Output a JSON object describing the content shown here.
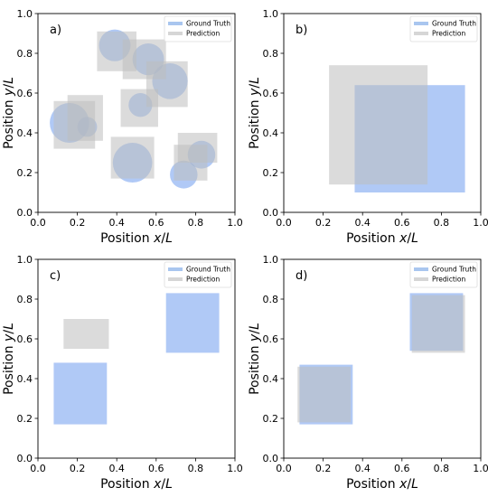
{
  "colors": {
    "ground_truth": "#6f9cef",
    "prediction": "#bdbdbd",
    "legend_ground_truth": "#a9c6ef",
    "legend_prediction": "#d6d6d6"
  },
  "chart_data": [
    {
      "type": "scatter",
      "panel_label": "a)",
      "xlabel": "Position x/L",
      "ylabel": "Position y/L",
      "xlim": [
        0,
        1
      ],
      "ylim": [
        0,
        1
      ],
      "xticks": [
        "0.0",
        "0.2",
        "0.4",
        "0.6",
        "0.8",
        "1.0"
      ],
      "yticks": [
        "0.0",
        "0.2",
        "0.4",
        "0.6",
        "0.8",
        "1.0"
      ],
      "legend": {
        "placement": "top-right",
        "ground_truth": "Ground Truth",
        "prediction": "Prediction"
      },
      "ground_truth_circles": [
        {
          "cx": 0.39,
          "cy": 0.84,
          "r": 0.08
        },
        {
          "cx": 0.56,
          "cy": 0.77,
          "r": 0.08
        },
        {
          "cx": 0.67,
          "cy": 0.66,
          "r": 0.09
        },
        {
          "cx": 0.16,
          "cy": 0.45,
          "r": 0.1
        },
        {
          "cx": 0.25,
          "cy": 0.43,
          "r": 0.05
        },
        {
          "cx": 0.52,
          "cy": 0.54,
          "r": 0.06
        },
        {
          "cx": 0.48,
          "cy": 0.25,
          "r": 0.1
        },
        {
          "cx": 0.83,
          "cy": 0.29,
          "r": 0.07
        },
        {
          "cx": 0.74,
          "cy": 0.19,
          "r": 0.07
        }
      ],
      "prediction_boxes": [
        {
          "x0": 0.3,
          "x1": 0.5,
          "y0": 0.71,
          "y1": 0.91
        },
        {
          "x0": 0.43,
          "x1": 0.65,
          "y0": 0.67,
          "y1": 0.87
        },
        {
          "x0": 0.55,
          "x1": 0.76,
          "y0": 0.53,
          "y1": 0.76
        },
        {
          "x0": 0.08,
          "x1": 0.29,
          "y0": 0.32,
          "y1": 0.56
        },
        {
          "x0": 0.15,
          "x1": 0.33,
          "y0": 0.36,
          "y1": 0.59
        },
        {
          "x0": 0.42,
          "x1": 0.61,
          "y0": 0.43,
          "y1": 0.62
        },
        {
          "x0": 0.37,
          "x1": 0.59,
          "y0": 0.17,
          "y1": 0.38
        },
        {
          "x0": 0.69,
          "x1": 0.86,
          "y0": 0.16,
          "y1": 0.34
        },
        {
          "x0": 0.71,
          "x1": 0.91,
          "y0": 0.25,
          "y1": 0.4
        }
      ]
    },
    {
      "type": "scatter",
      "panel_label": "b)",
      "xlabel": "Position x/L",
      "ylabel": "Position y/L",
      "xlim": [
        0,
        1
      ],
      "ylim": [
        0,
        1
      ],
      "xticks": [
        "0.0",
        "0.2",
        "0.4",
        "0.6",
        "0.8",
        "1.0"
      ],
      "yticks": [
        "0.0",
        "0.2",
        "0.4",
        "0.6",
        "0.8",
        "1.0"
      ],
      "legend": {
        "placement": "top-right",
        "ground_truth": "Ground Truth",
        "prediction": "Prediction"
      },
      "ground_truth_boxes": [
        {
          "x0": 0.36,
          "x1": 0.92,
          "y0": 0.1,
          "y1": 0.64
        }
      ],
      "prediction_boxes": [
        {
          "x0": 0.23,
          "x1": 0.73,
          "y0": 0.14,
          "y1": 0.74
        }
      ]
    },
    {
      "type": "scatter",
      "panel_label": "c)",
      "xlabel": "Position x/L",
      "ylabel": "Position y/L",
      "xlim": [
        0,
        1
      ],
      "ylim": [
        0,
        1
      ],
      "xticks": [
        "0.0",
        "0.2",
        "0.4",
        "0.6",
        "0.8",
        "1.0"
      ],
      "yticks": [
        "0.0",
        "0.2",
        "0.4",
        "0.6",
        "0.8",
        "1.0"
      ],
      "legend": {
        "placement": "top-right",
        "ground_truth": "Ground Truth",
        "prediction": "Prediction"
      },
      "ground_truth_boxes": [
        {
          "x0": 0.08,
          "x1": 0.35,
          "y0": 0.17,
          "y1": 0.48
        },
        {
          "x0": 0.65,
          "x1": 0.92,
          "y0": 0.53,
          "y1": 0.83
        }
      ],
      "prediction_boxes": [
        {
          "x0": 0.13,
          "x1": 0.36,
          "y0": 0.55,
          "y1": 0.7
        }
      ]
    },
    {
      "type": "scatter",
      "panel_label": "d)",
      "xlabel": "Position x/L",
      "ylabel": "Position y/L",
      "xlim": [
        0,
        1
      ],
      "ylim": [
        0,
        1
      ],
      "xticks": [
        "0.0",
        "0.2",
        "0.4",
        "0.6",
        "0.8",
        "1.0"
      ],
      "yticks": [
        "0.0",
        "0.2",
        "0.4",
        "0.6",
        "0.8",
        "1.0"
      ],
      "legend": {
        "placement": "top-right",
        "ground_truth": "Ground Truth",
        "prediction": "Prediction"
      },
      "ground_truth_boxes": [
        {
          "x0": 0.08,
          "x1": 0.35,
          "y0": 0.17,
          "y1": 0.47
        },
        {
          "x0": 0.64,
          "x1": 0.91,
          "y0": 0.54,
          "y1": 0.83
        }
      ],
      "prediction_boxes": [
        {
          "x0": 0.07,
          "x1": 0.34,
          "y0": 0.18,
          "y1": 0.46
        },
        {
          "x0": 0.65,
          "x1": 0.92,
          "y0": 0.53,
          "y1": 0.82
        }
      ]
    }
  ]
}
